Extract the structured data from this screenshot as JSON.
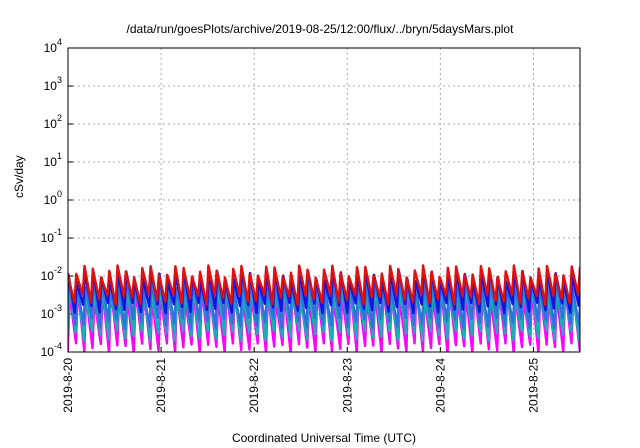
{
  "chart_data": {
    "type": "line",
    "title": "/data/run/goesPlots/archive/2019-08-25/12:00/flux/../bryn/5daysMars.plot",
    "xlabel": "Coordinated Universal Time (UTC)",
    "ylabel": "cSv/day",
    "yscale": "log",
    "ylim": [
      0.0001,
      10000
    ],
    "yticks": [
      {
        "base": "10",
        "exp": "4"
      },
      {
        "base": "10",
        "exp": "3"
      },
      {
        "base": "10",
        "exp": "2"
      },
      {
        "base": "10",
        "exp": "1"
      },
      {
        "base": "10",
        "exp": "0"
      },
      {
        "base": "10",
        "exp": "-1"
      },
      {
        "base": "10",
        "exp": "-2"
      },
      {
        "base": "10",
        "exp": "-3"
      },
      {
        "base": "10",
        "exp": "-4"
      }
    ],
    "xlim": [
      0,
      5.5
    ],
    "xticks": [
      {
        "value": 0,
        "label": "2019-8-20"
      },
      {
        "value": 1,
        "label": "2019-8-21"
      },
      {
        "value": 2,
        "label": "2019-8-22"
      },
      {
        "value": 3,
        "label": "2019-8-23"
      },
      {
        "value": 4,
        "label": "2019-8-24"
      },
      {
        "value": 5,
        "label": "2019-8-25"
      }
    ],
    "grid": true,
    "series": [
      {
        "color": "#ff00ff",
        "peak": 0.0035,
        "trough": 0.00013,
        "phase": 0.55
      },
      {
        "color": "#18b0b0",
        "peak": 0.0045,
        "trough": 0.00028,
        "phase": 0.45
      },
      {
        "color": "#3070e0",
        "peak": 0.007,
        "trough": 0.0006,
        "phase": 0.3
      },
      {
        "color": "#1414e0",
        "peak": 0.0105,
        "trough": 0.0015,
        "phase": 0.15
      },
      {
        "color": "#e01010",
        "peak": 0.014,
        "trough": 0.0025,
        "phase": 0.0
      }
    ],
    "cycles": 62
  }
}
